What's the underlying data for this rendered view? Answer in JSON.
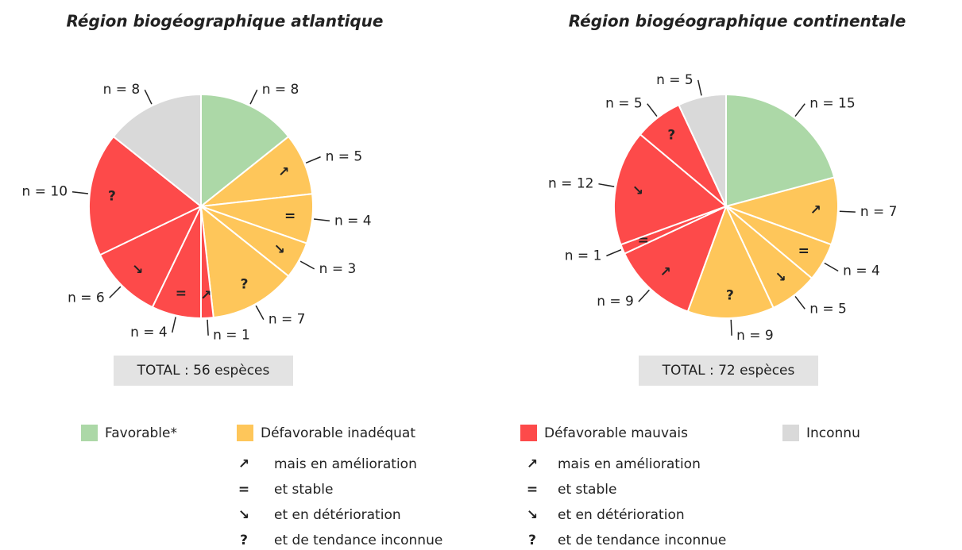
{
  "chart_data": [
    {
      "type": "pie",
      "title": "Région biogéographique atlantique",
      "values": [
        8,
        5,
        4,
        3,
        7,
        1,
        4,
        6,
        10,
        8
      ],
      "value_labels": [
        "n = 8",
        "n = 5",
        "n = 4",
        "n = 3",
        "n = 7",
        "n = 1",
        "n = 4",
        "n = 6",
        "n = 10",
        "n = 8"
      ],
      "symbols": [
        null,
        "↗",
        "=",
        "↘",
        "?",
        "↗",
        "=",
        "↘",
        "?",
        null
      ],
      "colors": [
        "#acd8a7",
        "#fec65a",
        "#fec65a",
        "#fec65a",
        "#fec65a",
        "#fd4a4a",
        "#fd4a4a",
        "#fd4a4a",
        "#fd4a4a",
        "#d9d9d9"
      ],
      "total": "TOTAL : 56 espèces"
    },
    {
      "type": "pie",
      "title": "Région biogéographique continentale",
      "values": [
        15,
        7,
        4,
        5,
        9,
        9,
        1,
        12,
        5,
        5
      ],
      "value_labels": [
        "n = 15",
        "n = 7",
        "n = 4",
        "n = 5",
        "n = 9",
        "n = 9",
        "n = 1",
        "n = 12",
        "n = 5",
        "n = 5"
      ],
      "symbols": [
        null,
        "↗",
        "=",
        "↘",
        "?",
        "↗",
        "=",
        "↘",
        "?",
        null
      ],
      "colors": [
        "#acd8a7",
        "#fec65a",
        "#fec65a",
        "#fec65a",
        "#fec65a",
        "#fd4a4a",
        "#fd4a4a",
        "#fd4a4a",
        "#fd4a4a",
        "#d9d9d9"
      ],
      "total": "TOTAL : 72 espèces"
    }
  ],
  "legend": {
    "entries": [
      {
        "name": "Favorable*",
        "color": "#acd8a7"
      },
      {
        "name": "Défavorable inadéquat",
        "color": "#fec65a"
      },
      {
        "name": "Défavorable mauvais",
        "color": "#fd4a4a"
      },
      {
        "name": "Inconnu",
        "color": "#d9d9d9"
      }
    ],
    "trends": [
      [
        {
          "symbol": "↗",
          "label": "mais en amélioration"
        },
        {
          "symbol": "=",
          "label": "et stable"
        },
        {
          "symbol": "↘",
          "label": "et en détérioration"
        },
        {
          "symbol": "?",
          "label": "et de tendance inconnue"
        }
      ],
      [
        {
          "symbol": "↗",
          "label": "mais en amélioration"
        },
        {
          "symbol": "=",
          "label": "et stable"
        },
        {
          "symbol": "↘",
          "label": "et en détérioration"
        },
        {
          "symbol": "?",
          "label": "et de tendance inconnue"
        }
      ]
    ]
  }
}
